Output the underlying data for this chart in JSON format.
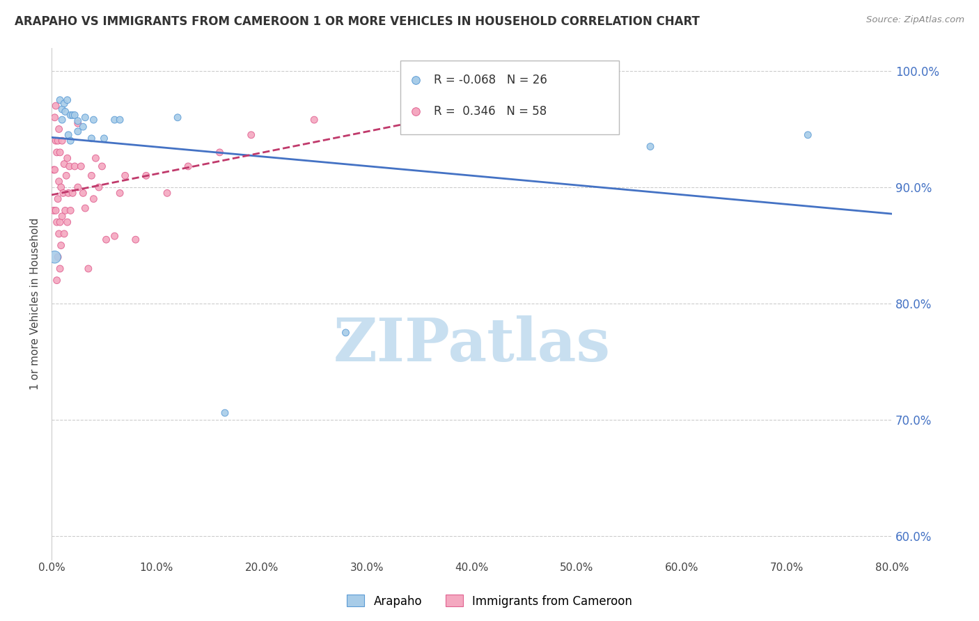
{
  "title": "ARAPAHO VS IMMIGRANTS FROM CAMEROON 1 OR MORE VEHICLES IN HOUSEHOLD CORRELATION CHART",
  "source": "Source: ZipAtlas.com",
  "ylabel": "1 or more Vehicles in Household",
  "xlim": [
    0.0,
    0.8
  ],
  "ylim": [
    0.58,
    1.02
  ],
  "x_tick_vals": [
    0.0,
    0.1,
    0.2,
    0.3,
    0.4,
    0.5,
    0.6,
    0.7,
    0.8
  ],
  "x_tick_labels": [
    "0.0%",
    "10.0%",
    "20.0%",
    "30.0%",
    "40.0%",
    "50.0%",
    "60.0%",
    "70.0%",
    "80.0%"
  ],
  "y_tick_vals": [
    0.6,
    0.7,
    0.8,
    0.9,
    1.0
  ],
  "y_tick_labels": [
    "60.0%",
    "70.0%",
    "80.0%",
    "90.0%",
    "100.0%"
  ],
  "legend_blue_R": "-0.068",
  "legend_blue_N": "26",
  "legend_pink_R": "0.346",
  "legend_pink_N": "58",
  "legend_label_blue": "Arapaho",
  "legend_label_pink": "Immigrants from Cameroon",
  "color_blue_fill": "#a8cce8",
  "color_blue_edge": "#5b9bd5",
  "color_pink_fill": "#f4a8c0",
  "color_pink_edge": "#e06090",
  "color_blue_line": "#4472c4",
  "color_pink_line": "#c0396b",
  "watermark_color": "#c8dff0",
  "arapaho_x": [
    0.003,
    0.008,
    0.01,
    0.01,
    0.012,
    0.013,
    0.015,
    0.016,
    0.018,
    0.018,
    0.02,
    0.022,
    0.025,
    0.025,
    0.03,
    0.032,
    0.038,
    0.04,
    0.05,
    0.06,
    0.065,
    0.12,
    0.165,
    0.28,
    0.57,
    0.72
  ],
  "arapaho_y": [
    0.84,
    0.975,
    0.967,
    0.958,
    0.972,
    0.965,
    0.975,
    0.945,
    0.962,
    0.94,
    0.962,
    0.962,
    0.948,
    0.957,
    0.952,
    0.96,
    0.942,
    0.958,
    0.942,
    0.958,
    0.958,
    0.96,
    0.706,
    0.775,
    0.935,
    0.945
  ],
  "arapaho_sizes": [
    160,
    50,
    50,
    50,
    50,
    50,
    50,
    50,
    50,
    50,
    50,
    50,
    50,
    50,
    50,
    50,
    50,
    50,
    50,
    50,
    50,
    50,
    50,
    50,
    50,
    50
  ],
  "cameroon_x": [
    0.002,
    0.002,
    0.003,
    0.003,
    0.004,
    0.004,
    0.004,
    0.005,
    0.005,
    0.005,
    0.006,
    0.006,
    0.006,
    0.007,
    0.007,
    0.007,
    0.008,
    0.008,
    0.008,
    0.009,
    0.009,
    0.01,
    0.01,
    0.011,
    0.012,
    0.012,
    0.013,
    0.014,
    0.015,
    0.015,
    0.016,
    0.017,
    0.018,
    0.02,
    0.022,
    0.025,
    0.025,
    0.028,
    0.03,
    0.032,
    0.035,
    0.038,
    0.04,
    0.042,
    0.045,
    0.048,
    0.052,
    0.06,
    0.065,
    0.07,
    0.08,
    0.09,
    0.11,
    0.13,
    0.16,
    0.19,
    0.25,
    0.34
  ],
  "cameroon_y": [
    0.915,
    0.88,
    0.96,
    0.915,
    0.88,
    0.94,
    0.97,
    0.82,
    0.87,
    0.93,
    0.84,
    0.89,
    0.94,
    0.86,
    0.905,
    0.95,
    0.83,
    0.87,
    0.93,
    0.85,
    0.9,
    0.875,
    0.94,
    0.895,
    0.86,
    0.92,
    0.88,
    0.91,
    0.87,
    0.925,
    0.895,
    0.918,
    0.88,
    0.895,
    0.918,
    0.9,
    0.955,
    0.918,
    0.895,
    0.882,
    0.83,
    0.91,
    0.89,
    0.925,
    0.9,
    0.918,
    0.855,
    0.858,
    0.895,
    0.91,
    0.855,
    0.91,
    0.895,
    0.918,
    0.93,
    0.945,
    0.958,
    0.96
  ],
  "cameroon_sizes": [
    50,
    50,
    50,
    50,
    50,
    50,
    50,
    50,
    50,
    50,
    50,
    50,
    50,
    50,
    50,
    50,
    50,
    50,
    50,
    50,
    50,
    50,
    50,
    50,
    50,
    50,
    50,
    50,
    50,
    50,
    50,
    50,
    50,
    50,
    50,
    50,
    50,
    50,
    50,
    50,
    50,
    50,
    50,
    50,
    50,
    50,
    50,
    50,
    50,
    50,
    50,
    50,
    50,
    50,
    50,
    50,
    50,
    50
  ]
}
